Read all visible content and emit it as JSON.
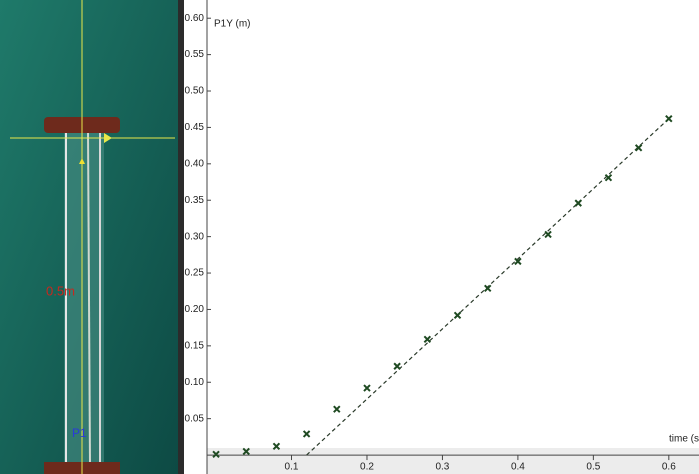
{
  "video": {
    "scale_label": "0.5m",
    "point_label": "P1"
  },
  "chart_data": {
    "type": "scatter",
    "y_label": "P1Y (m)",
    "x_label": "time (s",
    "x": [
      0,
      0.04,
      0.08,
      0.12,
      0.16,
      0.2,
      0.24,
      0.28,
      0.32,
      0.36,
      0.4,
      0.44,
      0.48,
      0.52,
      0.56,
      0.6
    ],
    "values": [
      0.001,
      0.005,
      0.012,
      0.029,
      0.063,
      0.092,
      0.122,
      0.159,
      0.192,
      0.229,
      0.266,
      0.303,
      0.346,
      0.381,
      0.422,
      0.462
    ],
    "color": "#1f4a22",
    "fit_line": {
      "x": [
        0.12,
        0.6
      ],
      "values": [
        0,
        0.462
      ],
      "color": "#2a3a2a"
    },
    "xlim": [
      -0.012,
      0.64
    ],
    "ylim": [
      -0.026,
      0.625
    ],
    "xticks": [
      0.1,
      0.2,
      0.3,
      0.4,
      0.5,
      0.6
    ],
    "yticks": [
      0.05,
      {
        "value": 0.1,
        "label": "0.10"
      },
      0.15,
      {
        "value": 0.2,
        "label": "0.20"
      },
      0.25,
      {
        "value": 0.3,
        "label": "0.30"
      },
      0.35,
      {
        "value": 0.4,
        "label": "0.40"
      },
      0.45,
      {
        "value": 0.5,
        "label": "0.50"
      },
      0.55,
      {
        "value": 0.6,
        "label": "0.60"
      }
    ]
  }
}
